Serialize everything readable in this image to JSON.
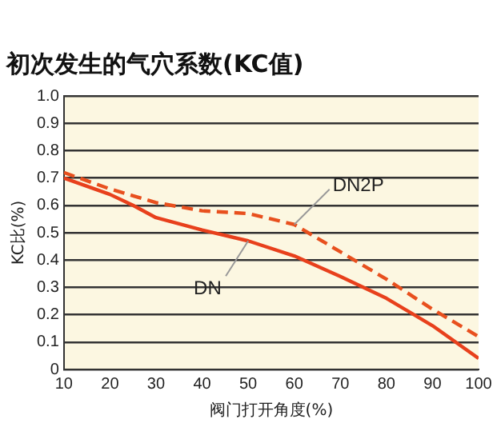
{
  "chart_data": {
    "type": "line",
    "title": "初次发生的气穴系数(KC值)",
    "xlabel": "阀门打开角度(%)",
    "ylabel": "KC比(%)",
    "x": [
      10,
      20,
      25,
      30,
      40,
      50,
      60,
      70,
      80,
      90,
      100
    ],
    "series": [
      {
        "name": "DN",
        "color": "#e8401c",
        "line_style": "solid",
        "values": [
          0.7,
          0.64,
          0.6,
          0.555,
          0.51,
          0.47,
          0.415,
          0.34,
          0.26,
          0.16,
          0.04
        ]
      },
      {
        "name": "DN2P",
        "color": "#e8501e",
        "line_style": "dashed",
        "values": [
          0.72,
          0.66,
          0.635,
          0.61,
          0.58,
          0.57,
          0.53,
          0.43,
          0.33,
          0.22,
          0.12
        ]
      }
    ],
    "xlim": [
      10,
      100
    ],
    "xticks": [
      10,
      20,
      30,
      40,
      50,
      60,
      70,
      80,
      90,
      100
    ],
    "ylim": [
      0,
      1
    ],
    "yticks": [
      0,
      0.1,
      0.2,
      0.3,
      0.4,
      0.5,
      0.6,
      0.7,
      0.8,
      0.9,
      {
        "value": 1,
        "label": "1.0"
      }
    ],
    "grid": "y",
    "legend": false,
    "marker": "none"
  }
}
